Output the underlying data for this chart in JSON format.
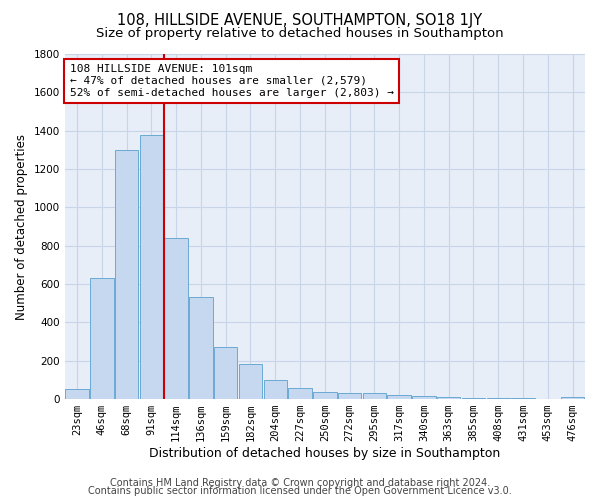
{
  "title1": "108, HILLSIDE AVENUE, SOUTHAMPTON, SO18 1JY",
  "title2": "Size of property relative to detached houses in Southampton",
  "xlabel": "Distribution of detached houses by size in Southampton",
  "ylabel": "Number of detached properties",
  "categories": [
    "23sqm",
    "46sqm",
    "68sqm",
    "91sqm",
    "114sqm",
    "136sqm",
    "159sqm",
    "182sqm",
    "204sqm",
    "227sqm",
    "250sqm",
    "272sqm",
    "295sqm",
    "317sqm",
    "340sqm",
    "363sqm",
    "385sqm",
    "408sqm",
    "431sqm",
    "453sqm",
    "476sqm"
  ],
  "values": [
    50,
    630,
    1300,
    1380,
    840,
    530,
    270,
    185,
    100,
    60,
    35,
    30,
    30,
    20,
    18,
    10,
    7,
    5,
    5,
    3,
    10
  ],
  "bar_color": "#c5d8f0",
  "bar_edge_color": "#6aaad4",
  "vline_x": 3.5,
  "vline_color": "#cc0000",
  "ylim": [
    0,
    1800
  ],
  "yticks": [
    0,
    200,
    400,
    600,
    800,
    1000,
    1200,
    1400,
    1600,
    1800
  ],
  "annotation_text": "108 HILLSIDE AVENUE: 101sqm\n← 47% of detached houses are smaller (2,579)\n52% of semi-detached houses are larger (2,803) →",
  "annotation_box_facecolor": "white",
  "annotation_box_edgecolor": "#cc0000",
  "footer1": "Contains HM Land Registry data © Crown copyright and database right 2024.",
  "footer2": "Contains public sector information licensed under the Open Government Licence v3.0.",
  "background_color": "#e8eef8",
  "grid_color": "#c8d4e8",
  "title1_fontsize": 10.5,
  "title2_fontsize": 9.5,
  "xlabel_fontsize": 9,
  "ylabel_fontsize": 8.5,
  "tick_fontsize": 7.5,
  "annotation_fontsize": 8,
  "footer_fontsize": 7
}
